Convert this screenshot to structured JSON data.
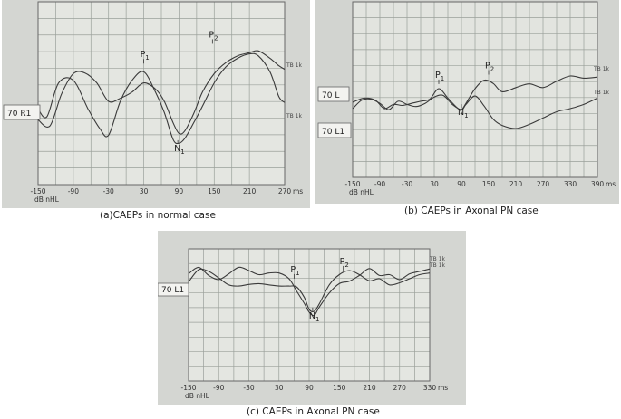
{
  "chart_data": [
    {
      "id": "a",
      "type": "line",
      "caption": "(a)CAEPs in normal case",
      "x_ticks": [
        -150,
        -90,
        -30,
        30,
        90,
        150,
        210,
        270
      ],
      "x_unit": "ms",
      "y_unit": "dB nHL",
      "xlim": [
        -150,
        270
      ],
      "channel_label": "70 R1",
      "peak_labels": [
        {
          "main": "P",
          "sub": "1",
          "x": 30,
          "y": 0.6
        },
        {
          "main": "P",
          "sub": "2",
          "x": 147,
          "y": 0.92
        },
        {
          "main": "N",
          "sub": "1",
          "x": 88,
          "y": -0.66
        }
      ],
      "series": [
        {
          "name": "TB 1k",
          "x": [
            -150,
            -135,
            -115,
            -90,
            -65,
            -45,
            -30,
            -10,
            10,
            30,
            50,
            65,
            80,
            90,
            100,
            115,
            130,
            150,
            170,
            190,
            210,
            225,
            245,
            260,
            270
          ],
          "y": [
            -0.12,
            -0.25,
            0.3,
            0.34,
            -0.12,
            -0.44,
            -0.55,
            0.0,
            0.34,
            0.48,
            0.15,
            -0.18,
            -0.62,
            -0.68,
            -0.6,
            -0.35,
            -0.08,
            0.3,
            0.56,
            0.7,
            0.77,
            0.74,
            0.48,
            0.08,
            -0.02
          ]
        },
        {
          "name": "TB 1k",
          "x": [
            -150,
            -130,
            -110,
            -90,
            -70,
            -50,
            -30,
            -10,
            10,
            30,
            50,
            65,
            80,
            90,
            100,
            115,
            130,
            150,
            170,
            190,
            210,
            225,
            245,
            260,
            270
          ],
          "y": [
            -0.3,
            -0.4,
            0.12,
            0.45,
            0.46,
            0.3,
            0.0,
            0.05,
            0.15,
            0.3,
            0.2,
            0.0,
            -0.35,
            -0.52,
            -0.48,
            -0.2,
            0.15,
            0.45,
            0.63,
            0.74,
            0.79,
            0.82,
            0.7,
            0.58,
            0.52
          ]
        }
      ]
    },
    {
      "id": "b",
      "type": "line",
      "caption": "(b) CAEPs in Axonal PN case",
      "x_ticks": [
        -150,
        -90,
        -30,
        30,
        90,
        150,
        210,
        270,
        330,
        390
      ],
      "x_unit": "ms",
      "y_unit": "dB nHL",
      "xlim": [
        -150,
        390
      ],
      "channel_labels": [
        "70 L",
        "70 L1"
      ],
      "peak_labels": [
        {
          "main": "P",
          "sub": "1",
          "x": 40,
          "y": 0.45
        },
        {
          "main": "P",
          "sub": "2",
          "x": 150,
          "y": 0.63
        },
        {
          "main": "N",
          "sub": "1",
          "x": 90,
          "y": 0.05
        }
      ],
      "series": [
        {
          "name": "TB 1k",
          "x": [
            -150,
            -125,
            -100,
            -80,
            -60,
            -40,
            -20,
            0,
            20,
            40,
            60,
            80,
            90,
            100,
            120,
            140,
            160,
            180,
            210,
            240,
            270,
            300,
            330,
            360,
            390
          ],
          "y": [
            0.12,
            0.2,
            0.16,
            0.0,
            0.08,
            0.06,
            0.1,
            0.14,
            0.18,
            0.38,
            0.2,
            0.02,
            -0.02,
            0.1,
            0.38,
            0.54,
            0.48,
            0.32,
            0.4,
            0.47,
            0.4,
            0.52,
            0.62,
            0.58,
            0.6
          ]
        },
        {
          "name": "TB 1k",
          "x": [
            -150,
            -130,
            -110,
            -90,
            -70,
            -50,
            -30,
            -10,
            10,
            30,
            50,
            70,
            90,
            100,
            120,
            140,
            160,
            180,
            210,
            240,
            270,
            300,
            330,
            360,
            390
          ],
          "y": [
            0.0,
            0.16,
            0.18,
            0.1,
            -0.02,
            0.14,
            0.08,
            0.04,
            0.1,
            0.22,
            0.25,
            0.08,
            -0.02,
            0.08,
            0.24,
            0.05,
            -0.2,
            -0.32,
            -0.38,
            -0.3,
            -0.18,
            -0.06,
            0.0,
            0.08,
            0.2
          ]
        }
      ]
    },
    {
      "id": "c",
      "type": "line",
      "caption": "(c) CAEPs in Axonal PN case",
      "x_ticks": [
        -150,
        -90,
        -30,
        30,
        90,
        150,
        210,
        270,
        330
      ],
      "x_unit": "ms",
      "y_unit": "dB nHL",
      "xlim": [
        -150,
        330
      ],
      "channel_label": "70 L1",
      "peak_labels": [
        {
          "main": "P",
          "sub": "1",
          "x": 60,
          "y": 0.18
        },
        {
          "main": "P",
          "sub": "2",
          "x": 158,
          "y": 0.38
        },
        {
          "main": "N",
          "sub": "1",
          "x": 97,
          "y": -0.55
        }
      ],
      "series": [
        {
          "name": "TB 1k",
          "x": [
            -150,
            -130,
            -110,
            -90,
            -70,
            -50,
            -30,
            -10,
            10,
            30,
            50,
            65,
            80,
            90,
            100,
            110,
            130,
            150,
            170,
            190,
            210,
            230,
            250,
            270,
            290,
            310,
            330
          ],
          "y": [
            0.32,
            0.48,
            0.28,
            0.18,
            0.32,
            0.48,
            0.4,
            0.3,
            0.34,
            0.34,
            0.2,
            -0.1,
            -0.4,
            -0.62,
            -0.7,
            -0.5,
            -0.15,
            0.08,
            0.14,
            0.28,
            0.45,
            0.28,
            0.3,
            0.18,
            0.32,
            0.38,
            0.44
          ]
        },
        {
          "name": "TB 1k",
          "x": [
            -150,
            -130,
            -110,
            -90,
            -70,
            -50,
            -30,
            -10,
            10,
            30,
            50,
            65,
            80,
            90,
            100,
            110,
            130,
            150,
            170,
            190,
            210,
            230,
            250,
            270,
            290,
            310,
            330
          ],
          "y": [
            0.12,
            0.42,
            0.38,
            0.22,
            0.05,
            0.02,
            0.06,
            0.08,
            0.05,
            0.02,
            0.02,
            0.0,
            -0.25,
            -0.55,
            -0.6,
            -0.42,
            0.05,
            0.3,
            0.4,
            0.3,
            0.15,
            0.2,
            0.05,
            0.1,
            0.2,
            0.3,
            0.34
          ]
        }
      ]
    }
  ]
}
